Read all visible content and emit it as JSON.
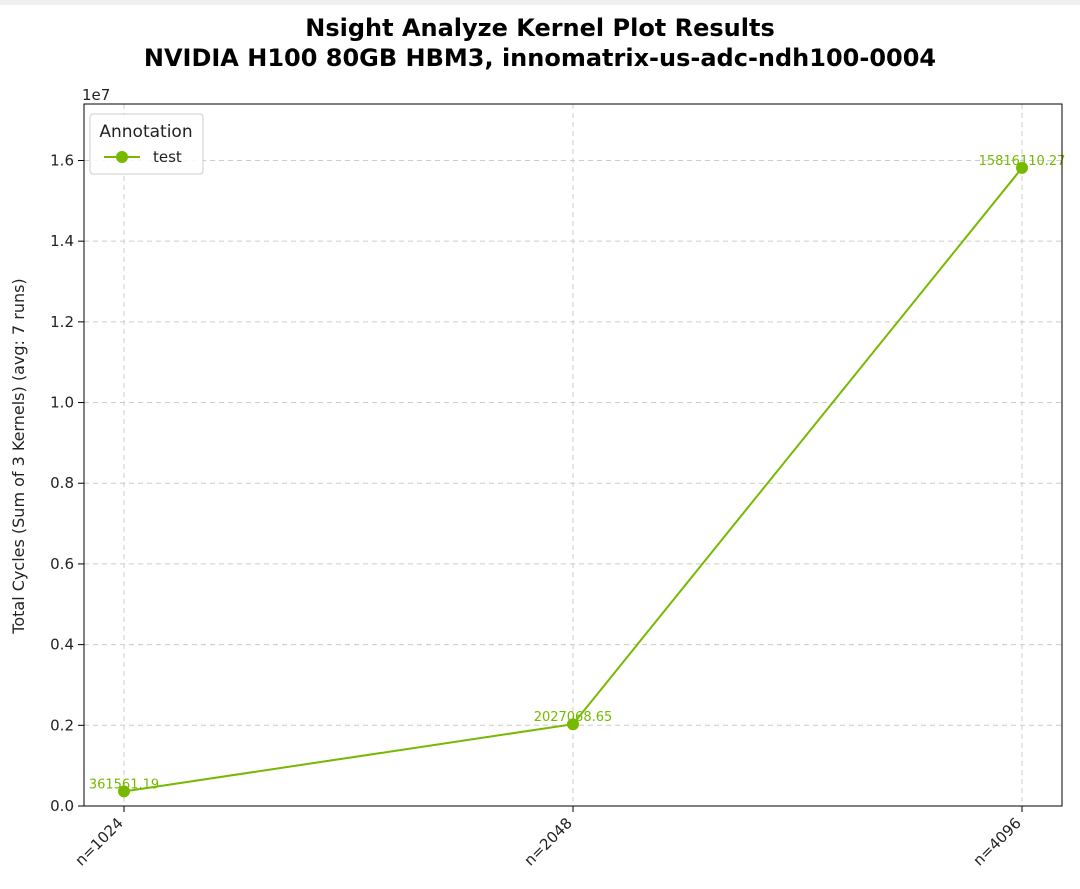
{
  "chart_data": {
    "type": "line",
    "title_line1": "Nsight Analyze Kernel Plot Results",
    "title_line2": "NVIDIA H100 80GB HBM3, innomatrix-us-adc-ndh100-0004",
    "ylabel": "Total Cycles (Sum of 3 Kernels) (avg: 7 runs)",
    "xlabel": "",
    "y_offset_label": "1e7",
    "categories": [
      "n=1024",
      "n=2048",
      "n=4096"
    ],
    "ylim": [
      0,
      17400000
    ],
    "yticks": [
      0,
      2000000,
      4000000,
      6000000,
      8000000,
      10000000,
      12000000,
      14000000,
      16000000
    ],
    "ytick_labels": [
      "0.0",
      "0.2",
      "0.4",
      "0.6",
      "0.8",
      "1.0",
      "1.2",
      "1.4",
      "1.6"
    ],
    "grid": true,
    "legend": {
      "title": "Annotation",
      "placement": "top-left"
    },
    "series": [
      {
        "name": "test",
        "color": "#76b900",
        "values": [
          361561.19,
          2027068.65,
          15816110.27
        ],
        "value_labels": [
          "361561.19",
          "2027068.65",
          "15816110.27"
        ]
      }
    ]
  }
}
